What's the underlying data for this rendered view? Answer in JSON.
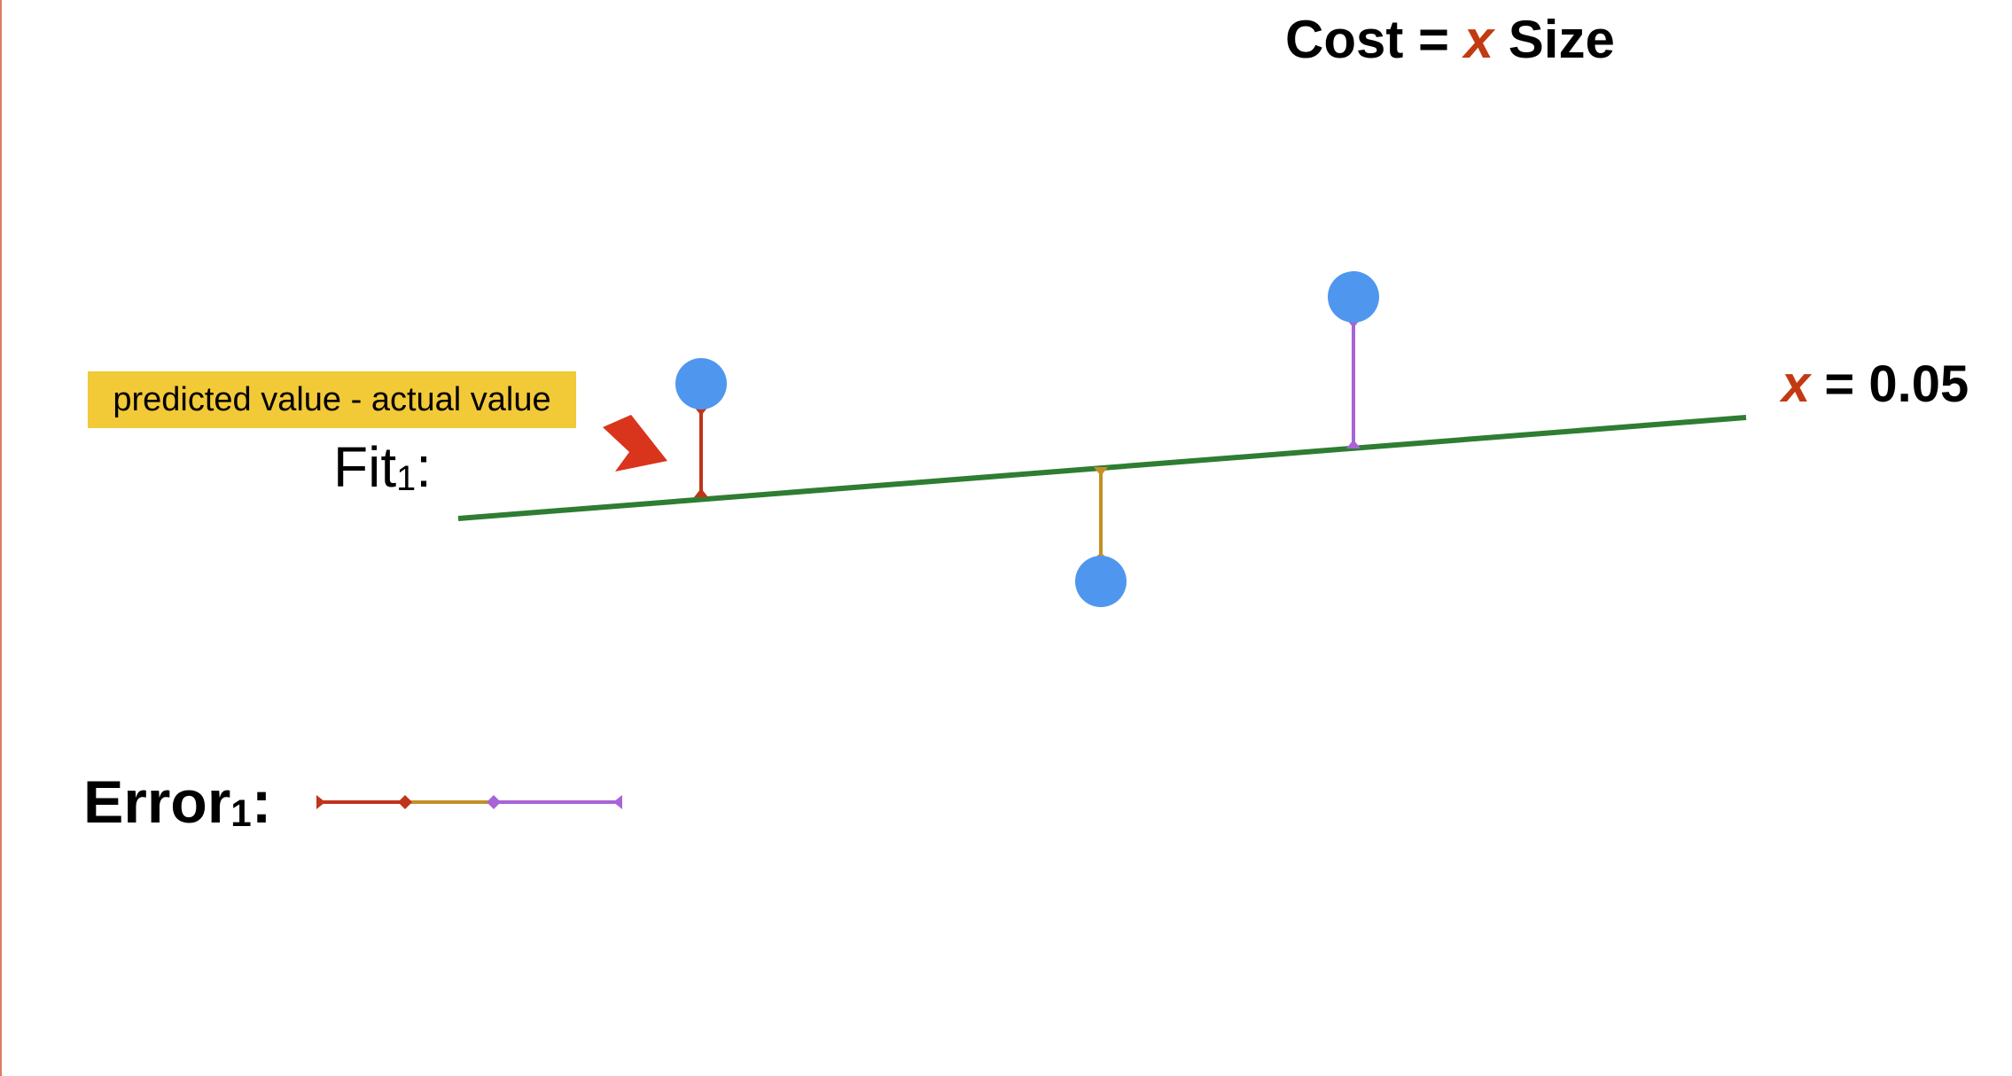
{
  "title": {
    "prefix": "Cost = ",
    "variable": "x",
    "suffix": " Size"
  },
  "parameter": {
    "variable": "x",
    "equals_text": " = 0.05"
  },
  "callout": {
    "text": "predicted value - actual value",
    "background": "#f2c937"
  },
  "fit_label": {
    "text": "Fit",
    "subscript": "1",
    "colon": ":"
  },
  "error_label": {
    "text": "Error",
    "subscript": "1",
    "colon": ":"
  },
  "colors": {
    "fit_line": "#2e7d32",
    "data_point": "#4f97ee",
    "variable_accent": "#c23a12",
    "arrow": "#d9341c",
    "residual_1": "#c0341a",
    "residual_2": "#c39026",
    "residual_3": "#a963d6"
  },
  "points": [
    {
      "name": "point-1",
      "residual_color_key": "residual_1",
      "side": "above"
    },
    {
      "name": "point-2",
      "residual_color_key": "residual_2",
      "side": "below"
    },
    {
      "name": "point-3",
      "residual_color_key": "residual_3",
      "side": "above"
    }
  ]
}
